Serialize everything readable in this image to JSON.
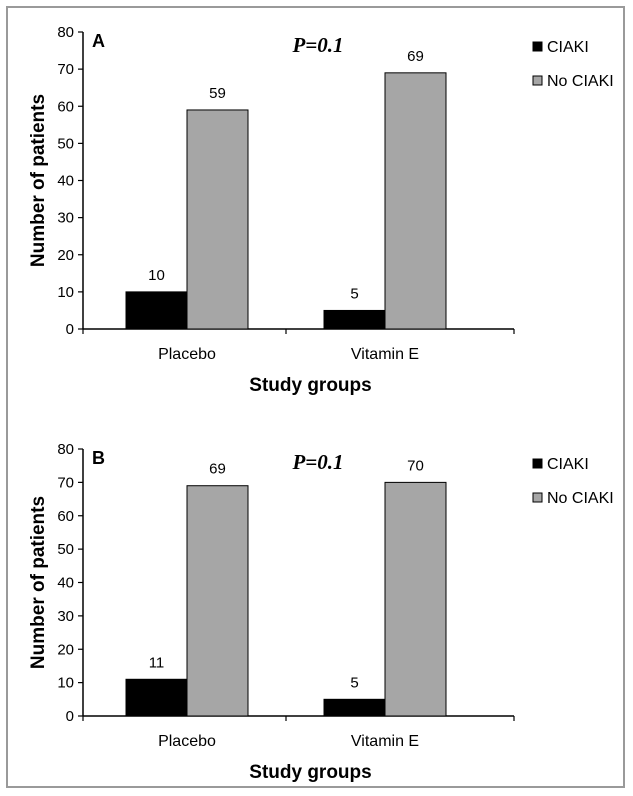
{
  "chart_data": [
    {
      "type": "bar",
      "panel_label": "A",
      "annotation": "P=0.1",
      "categories": [
        "Placebo",
        "Vitamin E"
      ],
      "series": [
        {
          "name": "CIAKI",
          "values": [
            10,
            5
          ],
          "color": "#000000"
        },
        {
          "name": "No CIAKI",
          "values": [
            59,
            69
          ],
          "color": "#a6a6a6"
        }
      ],
      "xlabel": "Study groups",
      "ylabel": "Number of patients",
      "ylim": [
        0,
        80
      ],
      "yticks": [
        0,
        10,
        20,
        30,
        40,
        50,
        60,
        70,
        80
      ],
      "legend_position": "right",
      "grid": false
    },
    {
      "type": "bar",
      "panel_label": "B",
      "annotation": "P=0.1",
      "categories": [
        "Placebo",
        "Vitamin E"
      ],
      "series": [
        {
          "name": "CIAKI",
          "values": [
            11,
            5
          ],
          "color": "#000000"
        },
        {
          "name": "No CIAKI",
          "values": [
            69,
            70
          ],
          "color": "#a6a6a6"
        }
      ],
      "xlabel": "Study groups",
      "ylabel": "Number of patients",
      "ylim": [
        0,
        80
      ],
      "yticks": [
        0,
        10,
        20,
        30,
        40,
        50,
        60,
        70,
        80
      ],
      "legend_position": "right",
      "grid": false
    }
  ]
}
